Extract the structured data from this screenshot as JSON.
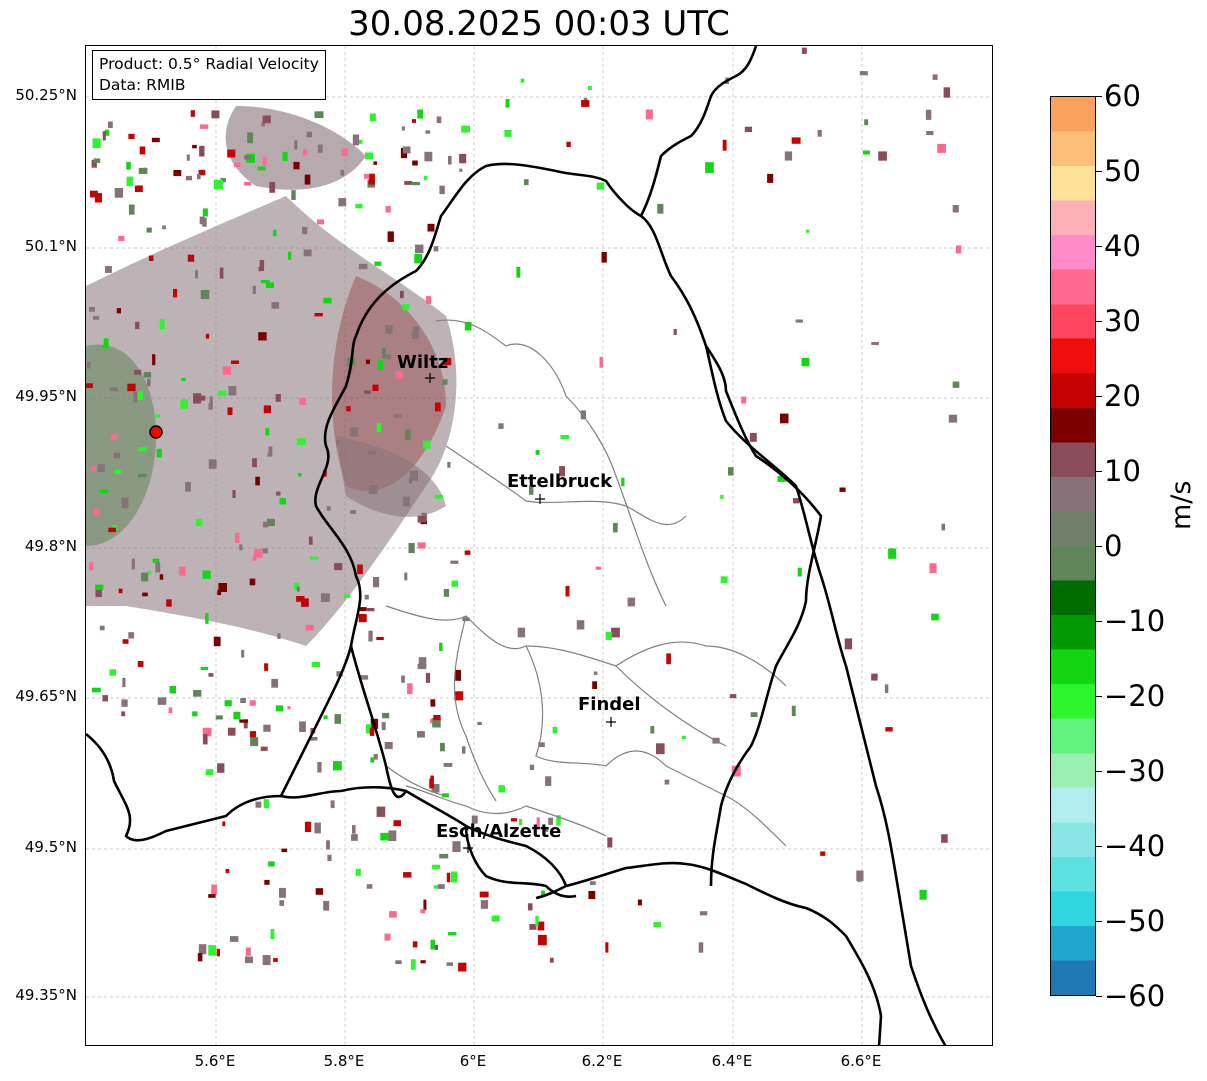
{
  "title": "30.08.2025 00:03 UTC",
  "info": {
    "product": "Product: 0.5° Radial Velocity",
    "data": "Data: RMIB"
  },
  "lat_ticks": [
    "50.25°N",
    "50.1°N",
    "49.95°N",
    "49.8°N",
    "49.65°N",
    "49.5°N",
    "49.35°N"
  ],
  "lon_ticks": [
    "5.6°E",
    "5.8°E",
    "6°E",
    "6.2°E",
    "6.4°E",
    "6.6°E"
  ],
  "cities": [
    "Wiltz",
    "Ettelbruck",
    "Findel",
    "Esch/Alzette"
  ],
  "colorbar": {
    "label": "m/s",
    "ticks": [
      "60",
      "50",
      "40",
      "30",
      "20",
      "10",
      "0",
      "−10",
      "−20",
      "−30",
      "−40",
      "−50",
      "−60"
    ],
    "colors": [
      "#fda25c",
      "#fdbf77",
      "#fde29a",
      "#fdb0b7",
      "#fe8ac9",
      "#fe6a8f",
      "#ff4560",
      "#f20d0d",
      "#c40202",
      "#7a0000",
      "#8a4c58",
      "#87727a",
      "#6e806a",
      "#5f8558",
      "#006b00",
      "#009a00",
      "#12d612",
      "#2bf52b",
      "#62f27e",
      "#9af0b2",
      "#b2eded",
      "#8ae6e6",
      "#5ce0e0",
      "#2ed6e0",
      "#20a5cf",
      "#1f77b4"
    ]
  },
  "map_colors": {
    "border": "#000000",
    "canton": "#808080",
    "radar_site": "#ff0000",
    "gray_echo": "#87727a",
    "green_echo": "#5f8558"
  }
}
